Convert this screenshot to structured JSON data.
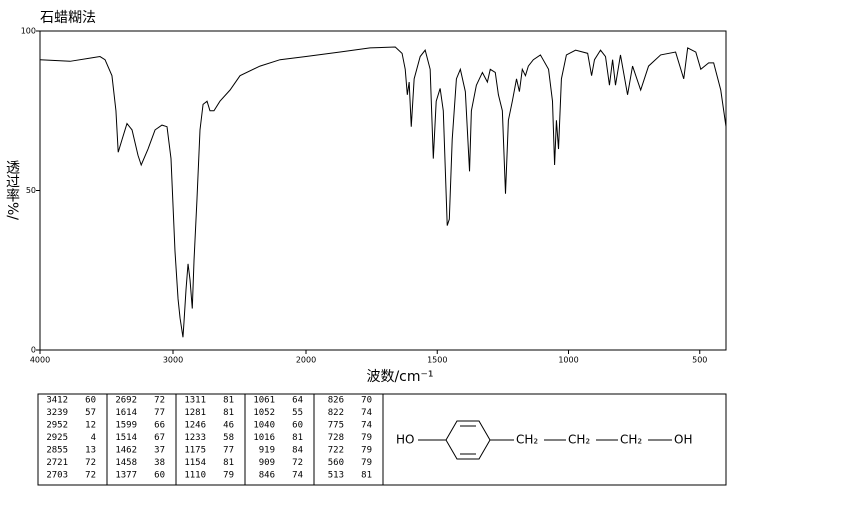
{
  "chart_data": {
    "type": "line",
    "title": "石蜡糊法",
    "xlabel": "波数/cm⁻¹",
    "ylabel": "透过率%/",
    "xlim": [
      4000,
      400
    ],
    "xbreak": 2000,
    "xticks": [
      4000,
      3000,
      2000,
      1500,
      1000,
      500
    ],
    "ylim": [
      0,
      100
    ],
    "yticks": [
      0,
      50,
      100
    ],
    "color": "#000000",
    "x": [
      4000,
      3774,
      3624,
      3549,
      3511,
      3459,
      3429,
      3412,
      3383,
      3346,
      3308,
      3263,
      3239,
      3188,
      3135,
      3083,
      3045,
      3015,
      2985,
      2962,
      2947,
      2925,
      2917,
      2902,
      2887,
      2872,
      2855,
      2842,
      2820,
      2797,
      2774,
      2744,
      2722,
      2692,
      2647,
      2571,
      2496,
      2346,
      2195,
      2000,
      1870,
      1756,
      1660,
      1634,
      1622,
      1614,
      1607,
      1599,
      1588,
      1565,
      1546,
      1527,
      1515,
      1504,
      1489,
      1477,
      1462,
      1454,
      1443,
      1427,
      1412,
      1393,
      1377,
      1370,
      1351,
      1328,
      1309,
      1298,
      1279,
      1267,
      1252,
      1240,
      1229,
      1214,
      1198,
      1187,
      1176,
      1164,
      1153,
      1134,
      1107,
      1076,
      1061,
      1053,
      1046,
      1038,
      1027,
      1008,
      973,
      927,
      912,
      901,
      878,
      859,
      844,
      832,
      821,
      802,
      775,
      756,
      725,
      695,
      649,
      592,
      561,
      546,
      515,
      496,
      466,
      447,
      420,
      400
    ],
    "values": [
      91,
      90.5,
      91.5,
      92,
      91,
      86,
      75,
      62,
      66,
      71,
      69,
      61,
      58,
      63,
      69,
      70.5,
      70,
      60,
      31,
      16,
      10,
      4,
      9,
      19,
      27,
      22,
      13,
      28,
      47,
      69,
      77,
      78,
      75,
      75,
      78,
      81.5,
      86,
      89,
      91,
      92,
      93.4,
      94.7,
      95,
      93,
      88,
      80,
      84,
      70,
      85,
      92,
      94,
      88,
      60,
      78,
      82,
      75,
      39,
      41,
      66,
      85,
      88,
      81,
      56,
      75,
      83,
      87,
      84,
      88,
      87,
      80,
      75,
      49,
      72,
      78,
      85,
      81,
      88,
      86,
      89,
      91,
      92.5,
      88,
      78,
      58,
      72,
      63,
      85,
      92.5,
      94,
      93,
      86,
      91,
      94,
      92,
      83,
      91,
      83,
      92.5,
      80,
      89,
      81.5,
      89,
      92.5,
      93.4,
      85,
      94.7,
      93.4,
      88,
      90,
      90,
      81.5,
      70
    ]
  },
  "peak_table": [
    [
      [
        3412,
        60
      ],
      [
        3239,
        57
      ],
      [
        2952,
        12
      ],
      [
        2925,
        4
      ],
      [
        2855,
        13
      ],
      [
        2721,
        72
      ],
      [
        2703,
        72
      ]
    ],
    [
      [
        2692,
        72
      ],
      [
        1614,
        77
      ],
      [
        1599,
        66
      ],
      [
        1514,
        67
      ],
      [
        1462,
        37
      ],
      [
        1458,
        38
      ],
      [
        1377,
        60
      ]
    ],
    [
      [
        1311,
        81
      ],
      [
        1281,
        81
      ],
      [
        1246,
        46
      ],
      [
        1233,
        58
      ],
      [
        1175,
        77
      ],
      [
        1154,
        81
      ],
      [
        1110,
        79
      ]
    ],
    [
      [
        1061,
        64
      ],
      [
        1052,
        55
      ],
      [
        1040,
        60
      ],
      [
        1016,
        81
      ],
      [
        919,
        84
      ],
      [
        909,
        72
      ],
      [
        846,
        74
      ]
    ],
    [
      [
        826,
        70
      ],
      [
        822,
        74
      ],
      [
        775,
        74
      ],
      [
        728,
        79
      ],
      [
        722,
        79
      ],
      [
        560,
        79
      ],
      [
        513,
        81
      ]
    ]
  ],
  "structure": {
    "left": "HO",
    "chain": [
      "CH₂",
      "CH₂",
      "CH₂"
    ],
    "right": "OH"
  }
}
